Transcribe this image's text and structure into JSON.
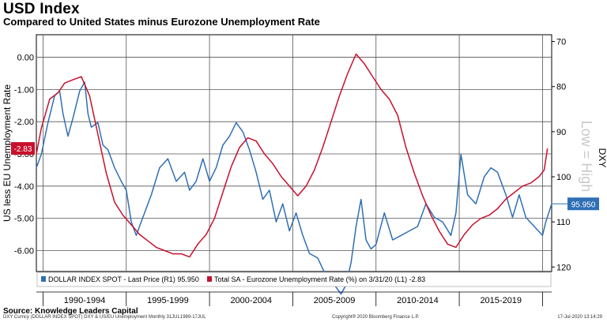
{
  "header": {
    "title": "USD Index",
    "subtitle": "Compared to United States minus Eurozone Unemployment Rate"
  },
  "footer": {
    "source": "Source: Knowledge Leaders Capital",
    "left_note": "DXY Curncy (DOLLAR INDEX SPOT) DXY & US/EU Unemployment  Monthly 31JUL1989-17JUL",
    "copyright": "Copyright® 2020 Bloomberg Finance L.P.",
    "timestamp": "17-Jul-2020 13:14:29"
  },
  "colors": {
    "dxy": "#2f6fb5",
    "unemp": "#c8102e",
    "grid": "#555555"
  },
  "chart_data": {
    "type": "line",
    "x_range": [
      1989.6,
      2020.55
    ],
    "x_period_labels": [
      "1990-1994",
      "1995-1999",
      "2000-2004",
      "2005-2009",
      "2010-2014",
      "2015-2019"
    ],
    "y_left": {
      "label": "US less EU Unemployment Rate",
      "ticks": [
        "0.00",
        "-1.00",
        "-2.00",
        "-3.00",
        "-4.00",
        "-5.00",
        "-6.00"
      ],
      "tick_values": [
        0,
        -1,
        -2,
        -3,
        -4,
        -5,
        -6
      ],
      "range": [
        -6.65,
        0.7
      ]
    },
    "y_right": {
      "label": "DXY",
      "note": "Low = High",
      "inverted": true,
      "ticks": [
        "70",
        "80",
        "90",
        "100",
        "110",
        "120"
      ],
      "tick_values": [
        70,
        80,
        90,
        100,
        110,
        120
      ],
      "range": [
        68.5,
        121
      ]
    },
    "series": [
      {
        "name": "DOLLAR INDEX SPOT - Last Price (R1) 95.950",
        "axis": "right",
        "last_value": "95.950",
        "x": [
          1989.6,
          1989.9,
          1990.3,
          1990.7,
          1991.0,
          1991.2,
          1991.5,
          1991.8,
          1992.2,
          1992.5,
          1992.7,
          1992.9,
          1993.3,
          1993.6,
          1993.9,
          1994.3,
          1994.7,
          1995.0,
          1995.3,
          1995.6,
          1996.0,
          1996.5,
          1997.0,
          1997.5,
          1998.0,
          1998.5,
          1998.8,
          1999.2,
          1999.6,
          2000.0,
          2000.4,
          2000.8,
          2001.2,
          2001.6,
          2002.0,
          2002.4,
          2002.8,
          2003.2,
          2003.6,
          2004.0,
          2004.4,
          2004.8,
          2005.2,
          2005.6,
          2006.0,
          2006.5,
          2007.0,
          2007.5,
          2007.9,
          2008.2,
          2008.5,
          2008.8,
          2009.1,
          2009.4,
          2009.7,
          2010.0,
          2010.5,
          2011.0,
          2011.5,
          2012.0,
          2012.5,
          2013.0,
          2013.5,
          2014.0,
          2014.5,
          2014.8,
          2015.1,
          2015.5,
          2016.0,
          2016.5,
          2016.9,
          2017.3,
          2017.8,
          2018.2,
          2018.6,
          2019.0,
          2019.5,
          2020.0,
          2020.2,
          2020.55
        ],
        "y": [
          98,
          95,
          88,
          82,
          81,
          86,
          91,
          87,
          81,
          79,
          86,
          89,
          88,
          93,
          94,
          98,
          101,
          103,
          110,
          113,
          109,
          104,
          98,
          96,
          101,
          99,
          103,
          101,
          96,
          101,
          98,
          93,
          91,
          88,
          90,
          94,
          99,
          105,
          103,
          110,
          106,
          112,
          108,
          113,
          117,
          118,
          122,
          124,
          126,
          124,
          119,
          111,
          105,
          114,
          116,
          115,
          108,
          114,
          113,
          112,
          111,
          106,
          109,
          110,
          113,
          108,
          95,
          104,
          106,
          100,
          98,
          99,
          104,
          109,
          104,
          109,
          111,
          113,
          110,
          106
        ],
        "x_note": "DXY values stored on inverted axis; see y_right.inverted"
      },
      {
        "name": "Total SA - Eurozone Unemployment Rate (%) on 3/31/20 (L1) -2.83",
        "axis": "left",
        "last_value": "-2.83",
        "x": [
          1989.6,
          1989.9,
          1990.4,
          1990.9,
          1991.3,
          1991.8,
          1992.3,
          1992.8,
          1993.3,
          1993.8,
          1994.3,
          1994.8,
          1995.3,
          1995.8,
          1996.3,
          1996.8,
          1997.3,
          1997.8,
          1998.3,
          1998.8,
          1999.3,
          1999.8,
          2000.3,
          2000.8,
          2001.3,
          2001.8,
          2002.3,
          2002.8,
          2003.3,
          2003.8,
          2004.3,
          2004.8,
          2005.3,
          2005.8,
          2006.3,
          2006.8,
          2007.3,
          2007.8,
          2008.3,
          2008.8,
          2009.3,
          2009.8,
          2010.3,
          2010.8,
          2011.3,
          2011.8,
          2012.3,
          2012.8,
          2013.3,
          2013.8,
          2014.3,
          2014.8,
          2015.3,
          2015.8,
          2016.3,
          2016.8,
          2017.3,
          2017.8,
          2018.3,
          2018.8,
          2019.3,
          2019.8,
          2020.1,
          2020.3
        ],
        "y": [
          -3.0,
          -2.2,
          -1.3,
          -1.1,
          -0.8,
          -0.7,
          -0.6,
          -1.2,
          -2.4,
          -3.6,
          -4.5,
          -4.9,
          -5.2,
          -5.5,
          -5.7,
          -5.9,
          -6.0,
          -6.1,
          -6.1,
          -6.2,
          -5.8,
          -5.5,
          -5.0,
          -4.2,
          -3.4,
          -2.8,
          -2.5,
          -2.6,
          -3.0,
          -3.3,
          -3.7,
          -4.0,
          -4.3,
          -4.0,
          -3.5,
          -2.8,
          -2.0,
          -1.2,
          -0.5,
          0.1,
          -0.2,
          -0.6,
          -1.0,
          -1.3,
          -1.8,
          -2.8,
          -3.6,
          -4.3,
          -4.9,
          -5.4,
          -5.8,
          -5.9,
          -5.5,
          -5.2,
          -5.0,
          -4.9,
          -4.7,
          -4.4,
          -4.2,
          -4.0,
          -3.9,
          -3.7,
          -3.5,
          -2.83
        ]
      }
    ],
    "legend": [
      {
        "label": "DOLLAR INDEX SPOT - Last Price (R1) 95.950",
        "color": "#2f6fb5"
      },
      {
        "label": "Total SA - Eurozone Unemployment Rate (%) on 3/31/20 (L1) -2.83",
        "color": "#c8102e"
      }
    ],
    "grid": true,
    "legend_position": "bottom"
  }
}
